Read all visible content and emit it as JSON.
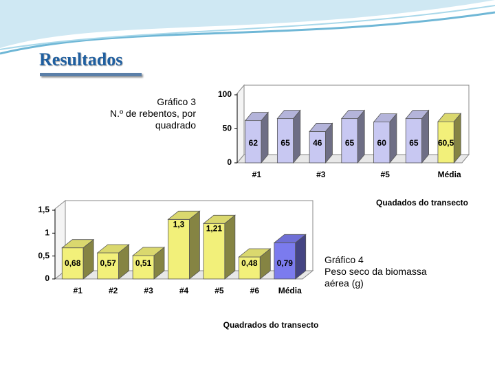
{
  "slide_title": "Resultados",
  "chart_data": [
    {
      "type": "bar",
      "title": "Gráfico 3",
      "subtitle": "N.º de rebentos, por quadrado",
      "categories": [
        "#1",
        null,
        "#3",
        null,
        "#5",
        null,
        "Média"
      ],
      "values": [
        62,
        65,
        46,
        65,
        60,
        65,
        60.5
      ],
      "value_labels": [
        "62",
        "65",
        "46",
        "65",
        "60",
        "65",
        "60,5"
      ],
      "colors": [
        "#c8c8f2",
        "#c8c8f2",
        "#c8c8f2",
        "#c8c8f2",
        "#c8c8f2",
        "#c8c8f2",
        "#f2f07a"
      ],
      "xlabel": "Quadados do transecto",
      "ylim": [
        0,
        100
      ],
      "yticks": [
        0,
        50,
        100
      ],
      "grid": false
    },
    {
      "type": "bar",
      "title": "Gráfico 4",
      "subtitle": "Peso seco da biomassa aérea (g)",
      "categories": [
        "#1",
        "#2",
        "#3",
        "#4",
        "#5",
        "#6",
        "Média"
      ],
      "values": [
        0.68,
        0.57,
        0.51,
        1.3,
        1.21,
        0.48,
        0.79
      ],
      "value_labels": [
        "0,68",
        "0,57",
        "0,51",
        "1,3",
        "1,21",
        "0,48",
        "0,79"
      ],
      "colors": [
        "#f2f07a",
        "#f2f07a",
        "#f2f07a",
        "#f2f07a",
        "#f2f07a",
        "#f2f07a",
        "#7b7bee"
      ],
      "xlabel": "Quadrados do transecto",
      "ylim": [
        0,
        1.5
      ],
      "yticks": [
        0,
        {
          "value": 0.5,
          "label": "0,5"
        },
        1,
        {
          "value": 1.5,
          "label": "1,5"
        }
      ],
      "grid": false
    }
  ]
}
